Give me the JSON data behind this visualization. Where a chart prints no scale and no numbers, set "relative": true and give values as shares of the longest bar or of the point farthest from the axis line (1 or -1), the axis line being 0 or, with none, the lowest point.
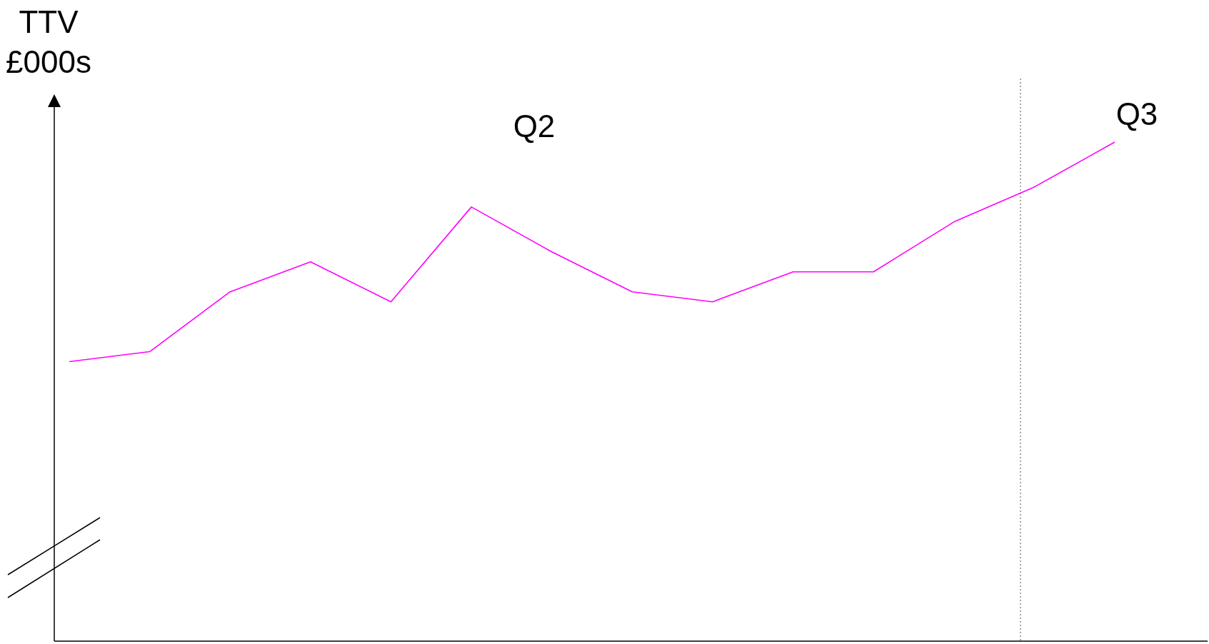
{
  "chart_data": {
    "type": "line",
    "relative": true,
    "ylabel": "TTV\n£000s",
    "categories": [
      null,
      null,
      null,
      null,
      null,
      null,
      null,
      null,
      null,
      null,
      null,
      null,
      null,
      null
    ],
    "series": [
      {
        "color": "#ff00ff",
        "values": [
          0.56,
          0.58,
          0.7,
          0.76,
          0.68,
          0.87,
          0.78,
          0.7,
          0.68,
          0.74,
          0.74,
          0.84,
          0.91,
          1.0
        ]
      }
    ],
    "annotations": [
      "Q2",
      "Q3"
    ],
    "marker": "none",
    "line_style": "solid"
  }
}
